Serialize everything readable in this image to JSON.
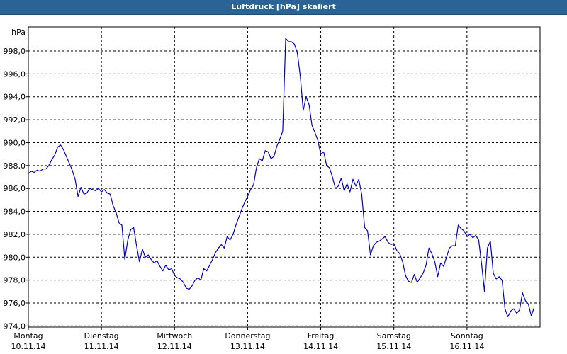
{
  "window": {
    "title": "Luftdruck [hPa] skaliert"
  },
  "chart_data": {
    "type": "line",
    "title": "Luftdruck [hPa] skaliert",
    "y_unit_label": "hPa",
    "ylim": [
      973.9,
      1000.1
    ],
    "xlim": [
      0,
      7.0
    ],
    "grid": true,
    "y_ticks": [
      {
        "value": 974,
        "label": "974,0"
      },
      {
        "value": 976,
        "label": "976,0"
      },
      {
        "value": 978,
        "label": "978,0"
      },
      {
        "value": 980,
        "label": "980,0"
      },
      {
        "value": 982,
        "label": "982,0"
      },
      {
        "value": 984,
        "label": "984,0"
      },
      {
        "value": 986,
        "label": "986,0"
      },
      {
        "value": 988,
        "label": "988,0"
      },
      {
        "value": 990,
        "label": "990,0"
      },
      {
        "value": 992,
        "label": "992,0"
      },
      {
        "value": 994,
        "label": "994,0"
      },
      {
        "value": 996,
        "label": "996,0"
      },
      {
        "value": 998,
        "label": "998,0"
      }
    ],
    "x_ticks": [
      {
        "value": 0,
        "day": "Montag",
        "date": "10.11.14"
      },
      {
        "value": 1,
        "day": "Dienstag",
        "date": "11.11.14"
      },
      {
        "value": 2,
        "day": "Mittwoch",
        "date": "12.11.14"
      },
      {
        "value": 3,
        "day": "Donnerstag",
        "date": "13.11.14"
      },
      {
        "value": 4,
        "day": "Freitag",
        "date": "14.11.14"
      },
      {
        "value": 5,
        "day": "Samstag",
        "date": "15.11.14"
      },
      {
        "value": 6,
        "day": "Sonntag",
        "date": "16.11.14"
      }
    ],
    "series": [
      {
        "color": "#0000cc",
        "points": [
          [
            0.0,
            987.3
          ],
          [
            0.04,
            987.5
          ],
          [
            0.08,
            987.4
          ],
          [
            0.12,
            987.6
          ],
          [
            0.16,
            987.5
          ],
          [
            0.2,
            987.7
          ],
          [
            0.24,
            987.7
          ],
          [
            0.28,
            988.0
          ],
          [
            0.32,
            988.5
          ],
          [
            0.36,
            988.9
          ],
          [
            0.4,
            989.6
          ],
          [
            0.44,
            989.8
          ],
          [
            0.48,
            989.4
          ],
          [
            0.52,
            988.8
          ],
          [
            0.56,
            988.2
          ],
          [
            0.6,
            987.6
          ],
          [
            0.64,
            986.8
          ],
          [
            0.68,
            985.3
          ],
          [
            0.72,
            986.1
          ],
          [
            0.76,
            985.5
          ],
          [
            0.8,
            985.6
          ],
          [
            0.84,
            986.0
          ],
          [
            0.88,
            985.9
          ],
          [
            0.92,
            985.8
          ],
          [
            0.96,
            986.0
          ],
          [
            1.0,
            985.7
          ],
          [
            1.04,
            985.9
          ],
          [
            1.08,
            985.6
          ],
          [
            1.12,
            985.5
          ],
          [
            1.16,
            984.5
          ],
          [
            1.2,
            983.9
          ],
          [
            1.24,
            983.0
          ],
          [
            1.28,
            982.8
          ],
          [
            1.32,
            979.8
          ],
          [
            1.36,
            981.5
          ],
          [
            1.4,
            982.4
          ],
          [
            1.44,
            982.6
          ],
          [
            1.48,
            981.0
          ],
          [
            1.52,
            979.6
          ],
          [
            1.56,
            980.7
          ],
          [
            1.6,
            980.0
          ],
          [
            1.64,
            980.2
          ],
          [
            1.68,
            979.8
          ],
          [
            1.72,
            979.5
          ],
          [
            1.76,
            979.7
          ],
          [
            1.8,
            979.2
          ],
          [
            1.84,
            978.8
          ],
          [
            1.88,
            979.3
          ],
          [
            1.92,
            978.9
          ],
          [
            1.96,
            979.0
          ],
          [
            2.0,
            978.4
          ],
          [
            2.04,
            978.2
          ],
          [
            2.08,
            978.1
          ],
          [
            2.12,
            977.8
          ],
          [
            2.16,
            977.3
          ],
          [
            2.2,
            977.2
          ],
          [
            2.24,
            977.5
          ],
          [
            2.28,
            978.0
          ],
          [
            2.32,
            978.2
          ],
          [
            2.36,
            978.0
          ],
          [
            2.4,
            979.0
          ],
          [
            2.44,
            978.8
          ],
          [
            2.48,
            979.3
          ],
          [
            2.52,
            979.8
          ],
          [
            2.56,
            980.4
          ],
          [
            2.6,
            980.8
          ],
          [
            2.64,
            981.1
          ],
          [
            2.68,
            980.8
          ],
          [
            2.72,
            981.8
          ],
          [
            2.76,
            981.5
          ],
          [
            2.8,
            982.0
          ],
          [
            2.84,
            982.8
          ],
          [
            2.88,
            983.5
          ],
          [
            2.92,
            984.2
          ],
          [
            2.96,
            984.8
          ],
          [
            3.0,
            985.3
          ],
          [
            3.04,
            985.9
          ],
          [
            3.08,
            986.3
          ],
          [
            3.12,
            987.8
          ],
          [
            3.16,
            988.6
          ],
          [
            3.2,
            988.4
          ],
          [
            3.24,
            989.3
          ],
          [
            3.28,
            989.2
          ],
          [
            3.32,
            988.6
          ],
          [
            3.36,
            988.8
          ],
          [
            3.4,
            989.7
          ],
          [
            3.44,
            990.3
          ],
          [
            3.48,
            991.0
          ],
          [
            3.52,
            999.1
          ],
          [
            3.56,
            998.8
          ],
          [
            3.6,
            998.8
          ],
          [
            3.64,
            998.6
          ],
          [
            3.68,
            997.8
          ],
          [
            3.72,
            995.8
          ],
          [
            3.76,
            992.8
          ],
          [
            3.8,
            994.0
          ],
          [
            3.84,
            993.3
          ],
          [
            3.88,
            991.5
          ],
          [
            3.92,
            990.9
          ],
          [
            3.96,
            990.2
          ],
          [
            4.0,
            989.0
          ],
          [
            4.04,
            989.2
          ],
          [
            4.08,
            988.0
          ],
          [
            4.12,
            987.8
          ],
          [
            4.16,
            987.0
          ],
          [
            4.2,
            986.0
          ],
          [
            4.24,
            986.2
          ],
          [
            4.28,
            986.9
          ],
          [
            4.32,
            985.8
          ],
          [
            4.36,
            986.4
          ],
          [
            4.4,
            985.7
          ],
          [
            4.44,
            986.8
          ],
          [
            4.48,
            986.2
          ],
          [
            4.52,
            986.8
          ],
          [
            4.56,
            985.5
          ],
          [
            4.6,
            982.6
          ],
          [
            4.64,
            982.3
          ],
          [
            4.68,
            980.2
          ],
          [
            4.72,
            981.0
          ],
          [
            4.76,
            981.3
          ],
          [
            4.8,
            981.4
          ],
          [
            4.84,
            981.6
          ],
          [
            4.88,
            981.8
          ],
          [
            4.92,
            981.3
          ],
          [
            4.96,
            981.1
          ],
          [
            5.0,
            981.2
          ],
          [
            5.04,
            980.6
          ],
          [
            5.08,
            980.3
          ],
          [
            5.12,
            979.6
          ],
          [
            5.16,
            978.4
          ],
          [
            5.2,
            977.9
          ],
          [
            5.24,
            977.8
          ],
          [
            5.28,
            978.5
          ],
          [
            5.32,
            977.8
          ],
          [
            5.36,
            978.2
          ],
          [
            5.4,
            978.6
          ],
          [
            5.44,
            979.3
          ],
          [
            5.48,
            980.8
          ],
          [
            5.52,
            980.3
          ],
          [
            5.56,
            979.6
          ],
          [
            5.6,
            978.3
          ],
          [
            5.64,
            979.5
          ],
          [
            5.68,
            979.2
          ],
          [
            5.72,
            980.0
          ],
          [
            5.76,
            980.8
          ],
          [
            5.8,
            981.0
          ],
          [
            5.84,
            981.0
          ],
          [
            5.88,
            982.8
          ],
          [
            5.92,
            982.5
          ],
          [
            5.96,
            982.3
          ],
          [
            6.0,
            981.8
          ],
          [
            6.04,
            982.0
          ],
          [
            6.08,
            981.7
          ],
          [
            6.12,
            981.9
          ],
          [
            6.16,
            981.5
          ],
          [
            6.2,
            979.4
          ],
          [
            6.24,
            977.0
          ],
          [
            6.28,
            980.8
          ],
          [
            6.32,
            981.4
          ],
          [
            6.36,
            978.6
          ],
          [
            6.4,
            978.1
          ],
          [
            6.44,
            978.3
          ],
          [
            6.48,
            978.0
          ],
          [
            6.52,
            975.5
          ],
          [
            6.56,
            974.8
          ],
          [
            6.6,
            975.3
          ],
          [
            6.64,
            975.5
          ],
          [
            6.68,
            975.1
          ],
          [
            6.72,
            975.4
          ],
          [
            6.76,
            976.9
          ],
          [
            6.8,
            976.2
          ],
          [
            6.84,
            975.9
          ],
          [
            6.88,
            974.9
          ],
          [
            6.92,
            975.6
          ]
        ]
      }
    ]
  }
}
